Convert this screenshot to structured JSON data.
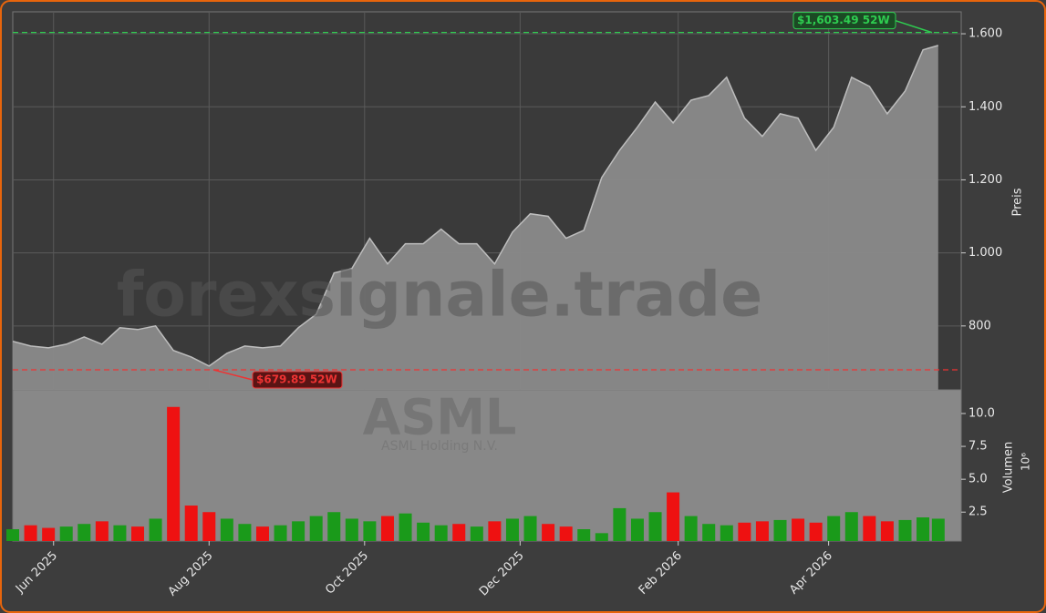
{
  "chart_data": {
    "type": "area",
    "watermark": "forexsignale.trade",
    "symbol": "ASML",
    "company": "ASML Holding N.V.",
    "y_label": "Preis",
    "volume_label": "Volumen",
    "volume_unit": "10⁶",
    "x": [
      "2025-05-16",
      "2025-05-23",
      "2025-05-30",
      "2025-06-06",
      "2025-06-13",
      "2025-06-20",
      "2025-06-27",
      "2025-07-04",
      "2025-07-11",
      "2025-07-18",
      "2025-07-25",
      "2025-08-01",
      "2025-08-08",
      "2025-08-15",
      "2025-08-22",
      "2025-08-29",
      "2025-09-05",
      "2025-09-12",
      "2025-09-19",
      "2025-09-26",
      "2025-10-03",
      "2025-10-10",
      "2025-10-17",
      "2025-10-24",
      "2025-10-31",
      "2025-11-07",
      "2025-11-14",
      "2025-11-21",
      "2025-11-28",
      "2025-12-05",
      "2025-12-12",
      "2025-12-19",
      "2025-12-26",
      "2026-01-02",
      "2026-01-09",
      "2026-01-16",
      "2026-01-23",
      "2026-01-30",
      "2026-02-06",
      "2026-02-13",
      "2026-02-20",
      "2026-02-27",
      "2026-03-06",
      "2026-03-13",
      "2026-03-20",
      "2026-03-27",
      "2026-04-03",
      "2026-04-10",
      "2026-04-17",
      "2026-04-24",
      "2026-05-01",
      "2026-05-08",
      "2026-05-14"
    ],
    "series": [
      {
        "name": "Preis",
        "color": "#bdbdbd",
        "fill": "#8a8a8a",
        "values": [
          758,
          745,
          740,
          750,
          770,
          750,
          795,
          790,
          800,
          733,
          715,
          690,
          725,
          745,
          740,
          745,
          795,
          832,
          945,
          957,
          1040,
          970,
          1025,
          1025,
          1065,
          1025,
          1025,
          970,
          1057,
          1107,
          1100,
          1040,
          1062,
          1206,
          1281,
          1344,
          1413,
          1356,
          1418,
          1431,
          1481,
          1369,
          1319,
          1381,
          1369,
          1281,
          1344,
          1481,
          1456,
          1381,
          1443,
          1556,
          1568
        ]
      },
      {
        "name": "Volumen",
        "axis": "y2",
        "up_color": "#1a9a1a",
        "down_color": "#ee1111",
        "values": [
          1.2,
          1.5,
          1.3,
          1.4,
          1.6,
          1.8,
          1.5,
          1.4,
          2.0,
          10.5,
          3.0,
          2.5,
          2.0,
          1.6,
          1.4,
          1.5,
          1.8,
          2.2,
          2.5,
          2.0,
          1.8,
          2.2,
          2.4,
          1.7,
          1.5,
          1.6,
          1.4,
          1.8,
          2.0,
          2.2,
          1.6,
          1.4,
          1.2,
          0.9,
          2.8,
          2.0,
          2.5,
          4.0,
          2.2,
          1.6,
          1.5,
          1.7,
          1.8,
          1.9,
          2.0,
          1.7,
          2.2,
          2.5,
          2.2,
          1.8,
          1.9,
          2.1,
          2.0
        ]
      }
    ],
    "xlim": [
      "2025-05-16",
      "2026-05-23"
    ],
    "xticks": [
      {
        "value": "2025-06-01",
        "label": "Jun 2025"
      },
      {
        "value": "2025-08-01",
        "label": "Aug 2025"
      },
      {
        "value": "2025-10-01",
        "label": "Oct 2025"
      },
      {
        "value": "2025-12-01",
        "label": "Dec 2025"
      },
      {
        "value": "2026-02-01",
        "label": "Feb 2026"
      },
      {
        "value": "2026-04-01",
        "label": "Apr 2026"
      }
    ],
    "ylim": [
      625,
      1660
    ],
    "yticks": [
      800,
      {
        "value": 1000,
        "label": "1.000"
      },
      {
        "value": 1200,
        "label": "1.200"
      },
      {
        "value": 1400,
        "label": "1.400"
      },
      {
        "value": 1600,
        "label": "1.600"
      }
    ],
    "y2lim": [
      0.3,
      11.8
    ],
    "y2ticks": [
      2.5,
      {
        "value": 5,
        "label": "5.0"
      },
      7.5,
      {
        "value": 10,
        "label": "10.0"
      }
    ],
    "grid": true,
    "annotations": [
      {
        "value": 1603.49,
        "label": "$1,603.49 52W",
        "color": "#2ecc50"
      },
      {
        "value": 679.89,
        "label": "$679.89 52W",
        "color": "#ee3333"
      }
    ]
  }
}
